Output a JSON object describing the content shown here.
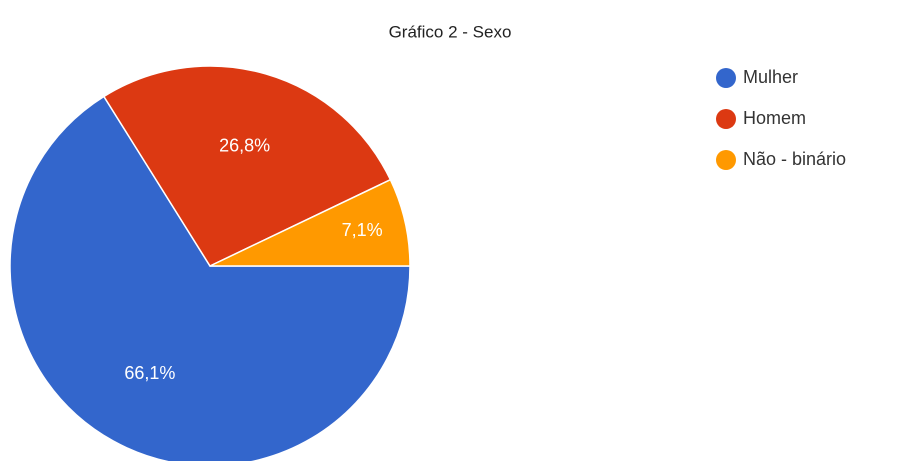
{
  "chart_data": {
    "type": "pie",
    "title": "Gráfico 2 - Sexo",
    "categories": [
      "Mulher",
      "Homem",
      "Não - binário"
    ],
    "values": [
      66.1,
      26.8,
      7.1
    ],
    "value_labels": [
      "66,1%",
      "26,8%",
      "7,1%"
    ],
    "colors": [
      "#3366cc",
      "#dc3912",
      "#ff9900"
    ],
    "legend": "right"
  }
}
